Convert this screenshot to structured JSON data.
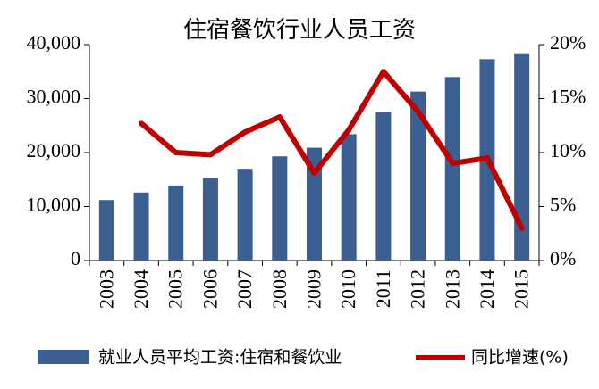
{
  "chart_data": {
    "type": "bar+line",
    "title": "住宿餐饮行业人员工资",
    "categories": [
      "2003",
      "2004",
      "2005",
      "2006",
      "2007",
      "2008",
      "2009",
      "2010",
      "2011",
      "2012",
      "2013",
      "2014",
      "2015"
    ],
    "series": [
      {
        "name": "就业人员平均工资:住宿和餐饮业",
        "type": "bar",
        "axis": "left",
        "color": "#3b5f91",
        "values": [
          11200,
          12600,
          13900,
          15200,
          17000,
          19300,
          20900,
          23400,
          27500,
          31300,
          34000,
          37300,
          38400
        ]
      },
      {
        "name": "同比增速(%)",
        "type": "line",
        "axis": "right",
        "color": "#c00000",
        "values": [
          null,
          12.7,
          10.0,
          9.8,
          11.9,
          13.3,
          8.1,
          12.1,
          17.5,
          13.8,
          9.0,
          9.5,
          3.0
        ]
      }
    ],
    "y_left": {
      "ylim": [
        0,
        40000
      ],
      "ticks": [
        0,
        10000,
        20000,
        30000,
        40000
      ],
      "tick_labels": [
        "0",
        "10,000",
        "20,000",
        "30,000",
        "40,000"
      ]
    },
    "y_right": {
      "ylim": [
        0,
        20
      ],
      "ticks": [
        0,
        5,
        10,
        15,
        20
      ],
      "tick_labels": [
        "0%",
        "5%",
        "10%",
        "15%",
        "20%"
      ]
    },
    "grid": false,
    "legend_position": "bottom"
  }
}
